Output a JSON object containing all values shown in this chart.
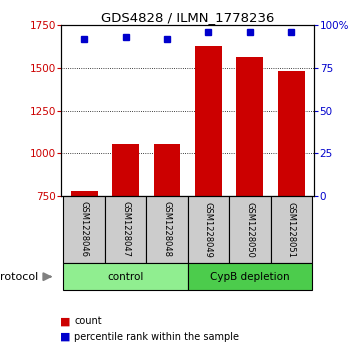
{
  "title": "GDS4828 / ILMN_1778236",
  "samples": [
    "GSM1228046",
    "GSM1228047",
    "GSM1228048",
    "GSM1228049",
    "GSM1228050",
    "GSM1228051"
  ],
  "counts": [
    780,
    1055,
    1055,
    1630,
    1565,
    1480
  ],
  "percentiles": [
    92,
    93,
    92,
    96,
    96,
    96
  ],
  "groups": [
    {
      "label": "control",
      "indices": [
        0,
        1,
        2
      ],
      "color": "#90EE90"
    },
    {
      "label": "CypB depletion",
      "indices": [
        3,
        4,
        5
      ],
      "color": "#4CCC4C"
    }
  ],
  "ylim_left": [
    750,
    1750
  ],
  "yticks_left": [
    750,
    1000,
    1250,
    1500,
    1750
  ],
  "ylim_right": [
    0,
    100
  ],
  "yticks_right": [
    0,
    25,
    50,
    75,
    100
  ],
  "yticklabels_right": [
    "0",
    "25",
    "50",
    "75",
    "100%"
  ],
  "bar_color": "#CC0000",
  "dot_color": "#0000CC",
  "background_color": "#ffffff",
  "label_box_color": "#cccccc",
  "legend_count_label": "count",
  "legend_pct_label": "percentile rank within the sample",
  "protocol_label": "protocol"
}
